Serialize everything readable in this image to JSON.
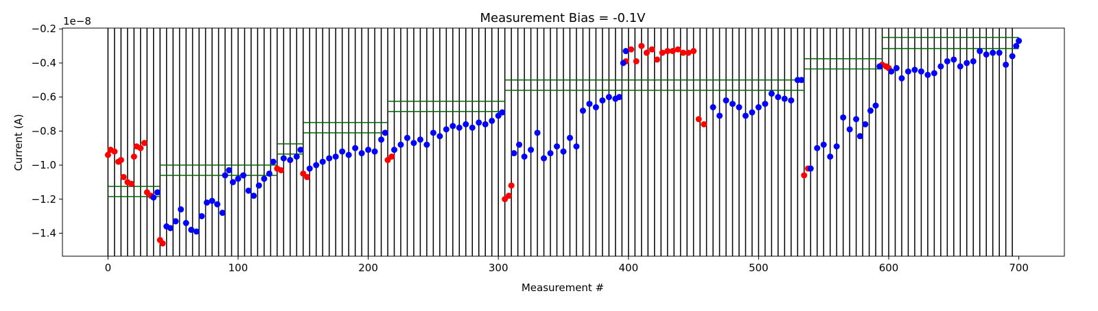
{
  "chart_data": {
    "type": "scatter",
    "title": "Measurement Bias = -0.1V",
    "xlabel": "Measurement #",
    "ylabel": "Current (A)",
    "y_offset_text": "1e−8",
    "xlim": [
      -35,
      735
    ],
    "ylim": [
      -15.35,
      -1.95
    ],
    "x_ticks": [
      0,
      100,
      200,
      300,
      400,
      500,
      600,
      700
    ],
    "x_tick_labels": [
      "0",
      "100",
      "200",
      "300",
      "400",
      "500",
      "600",
      "700"
    ],
    "y_ticks": [
      -14,
      -12,
      -10,
      -8,
      -6,
      -4,
      -2
    ],
    "y_tick_labels": [
      "−1.4",
      "−1.2",
      "−1.0",
      "−0.8",
      "−0.6",
      "−0.4",
      "−0.2"
    ],
    "grid": false,
    "colors": {
      "normal": "#0000ff",
      "flagged": "#ff0000",
      "vertical_lines": "#000000",
      "thresholds": "#006400"
    },
    "vertical_lines_x": [
      0,
      5,
      10,
      15,
      20,
      25,
      30,
      35,
      40,
      45,
      50,
      55,
      60,
      65,
      70,
      75,
      80,
      85,
      90,
      95,
      100,
      105,
      110,
      115,
      120,
      125,
      130,
      135,
      140,
      145,
      150,
      155,
      160,
      165,
      170,
      175,
      180,
      185,
      190,
      195,
      200,
      205,
      210,
      215,
      220,
      225,
      230,
      235,
      240,
      245,
      250,
      255,
      260,
      265,
      270,
      275,
      280,
      285,
      290,
      295,
      300,
      305,
      310,
      315,
      320,
      325,
      330,
      335,
      340,
      345,
      350,
      355,
      360,
      365,
      370,
      375,
      380,
      385,
      390,
      395,
      400,
      405,
      410,
      415,
      420,
      425,
      430,
      435,
      440,
      445,
      450,
      455,
      460,
      465,
      470,
      475,
      480,
      485,
      490,
      495,
      500,
      505,
      510,
      515,
      520,
      525,
      530,
      535,
      540,
      545,
      550,
      555,
      560,
      565,
      570,
      575,
      580,
      585,
      590,
      595,
      600,
      605,
      610,
      615,
      620,
      625,
      630,
      635,
      640,
      645,
      650,
      655,
      660,
      665,
      670,
      675,
      680,
      685,
      690,
      695
    ],
    "threshold_segments": [
      {
        "x": [
          0,
          40
        ],
        "y_upper": -11.25,
        "y_lower": -11.85
      },
      {
        "x": [
          40,
          130
        ],
        "y_upper": -10.0,
        "y_lower": -10.6
      },
      {
        "x": [
          130,
          150
        ],
        "y_upper": -8.75,
        "y_lower": -9.35
      },
      {
        "x": [
          150,
          215
        ],
        "y_upper": -7.5,
        "y_lower": -8.1
      },
      {
        "x": [
          215,
          305
        ],
        "y_upper": -6.25,
        "y_lower": -6.85
      },
      {
        "x": [
          305,
          535
        ],
        "y_upper": -5.0,
        "y_lower": -5.6
      },
      {
        "x": [
          535,
          595
        ],
        "y_upper": -3.75,
        "y_lower": -4.35
      },
      {
        "x": [
          595,
          700
        ],
        "y_upper": -2.5,
        "y_lower": -3.15
      }
    ],
    "series": [
      {
        "color": "red",
        "points": [
          [
            0,
            -9.4
          ],
          [
            2,
            -9.1
          ],
          [
            5,
            -9.2
          ],
          [
            8,
            -9.8
          ],
          [
            10,
            -9.7
          ],
          [
            12,
            -10.7
          ],
          [
            15,
            -11.0
          ],
          [
            18,
            -11.1
          ],
          [
            20,
            -9.5
          ],
          [
            22,
            -8.9
          ],
          [
            25,
            -9.0
          ],
          [
            28,
            -8.7
          ],
          [
            30,
            -11.6
          ],
          [
            33,
            -11.8
          ],
          [
            40,
            -14.4
          ],
          [
            42,
            -14.6
          ],
          [
            130,
            -10.2
          ],
          [
            133,
            -10.3
          ],
          [
            150,
            -10.5
          ],
          [
            153,
            -10.7
          ],
          [
            215,
            -9.7
          ],
          [
            218,
            -9.5
          ],
          [
            305,
            -12.0
          ],
          [
            308,
            -11.8
          ],
          [
            310,
            -11.2
          ],
          [
            398,
            -3.9
          ],
          [
            402,
            -3.2
          ],
          [
            406,
            -3.9
          ],
          [
            410,
            -3.0
          ],
          [
            414,
            -3.4
          ],
          [
            418,
            -3.2
          ],
          [
            422,
            -3.8
          ],
          [
            426,
            -3.4
          ],
          [
            430,
            -3.3
          ],
          [
            434,
            -3.3
          ],
          [
            438,
            -3.2
          ],
          [
            442,
            -3.4
          ],
          [
            446,
            -3.4
          ],
          [
            450,
            -3.3
          ],
          [
            454,
            -7.3
          ],
          [
            458,
            -7.6
          ],
          [
            535,
            -10.6
          ],
          [
            538,
            -10.2
          ],
          [
            595,
            -4.1
          ],
          [
            598,
            -4.2
          ],
          [
            600,
            -4.3
          ]
        ]
      },
      {
        "color": "blue",
        "points": [
          [
            35,
            -11.9
          ],
          [
            38,
            -11.6
          ],
          [
            45,
            -13.6
          ],
          [
            48,
            -13.7
          ],
          [
            52,
            -13.3
          ],
          [
            56,
            -12.6
          ],
          [
            60,
            -13.4
          ],
          [
            64,
            -13.8
          ],
          [
            68,
            -13.9
          ],
          [
            72,
            -13.0
          ],
          [
            76,
            -12.2
          ],
          [
            80,
            -12.1
          ],
          [
            84,
            -12.3
          ],
          [
            88,
            -12.8
          ],
          [
            90,
            -10.6
          ],
          [
            93,
            -10.3
          ],
          [
            96,
            -11.0
          ],
          [
            100,
            -10.8
          ],
          [
            104,
            -10.6
          ],
          [
            108,
            -11.5
          ],
          [
            112,
            -11.8
          ],
          [
            116,
            -11.2
          ],
          [
            120,
            -10.8
          ],
          [
            124,
            -10.5
          ],
          [
            127,
            -9.8
          ],
          [
            135,
            -9.6
          ],
          [
            140,
            -9.7
          ],
          [
            145,
            -9.5
          ],
          [
            148,
            -9.1
          ],
          [
            155,
            -10.2
          ],
          [
            160,
            -10.0
          ],
          [
            165,
            -9.8
          ],
          [
            170,
            -9.6
          ],
          [
            175,
            -9.5
          ],
          [
            180,
            -9.2
          ],
          [
            185,
            -9.4
          ],
          [
            190,
            -9.0
          ],
          [
            195,
            -9.3
          ],
          [
            200,
            -9.1
          ],
          [
            205,
            -9.2
          ],
          [
            210,
            -8.5
          ],
          [
            213,
            -8.1
          ],
          [
            220,
            -9.1
          ],
          [
            225,
            -8.8
          ],
          [
            230,
            -8.4
          ],
          [
            235,
            -8.7
          ],
          [
            240,
            -8.5
          ],
          [
            245,
            -8.8
          ],
          [
            250,
            -8.1
          ],
          [
            255,
            -8.3
          ],
          [
            260,
            -7.9
          ],
          [
            265,
            -7.7
          ],
          [
            270,
            -7.8
          ],
          [
            275,
            -7.6
          ],
          [
            280,
            -7.8
          ],
          [
            285,
            -7.5
          ],
          [
            290,
            -7.6
          ],
          [
            295,
            -7.4
          ],
          [
            300,
            -7.1
          ],
          [
            303,
            -6.9
          ],
          [
            312,
            -9.3
          ],
          [
            316,
            -8.8
          ],
          [
            320,
            -9.5
          ],
          [
            325,
            -9.1
          ],
          [
            330,
            -8.1
          ],
          [
            335,
            -9.6
          ],
          [
            340,
            -9.3
          ],
          [
            345,
            -8.9
          ],
          [
            350,
            -9.2
          ],
          [
            355,
            -8.4
          ],
          [
            360,
            -8.9
          ],
          [
            365,
            -6.8
          ],
          [
            370,
            -6.4
          ],
          [
            375,
            -6.6
          ],
          [
            380,
            -6.2
          ],
          [
            385,
            -6.0
          ],
          [
            390,
            -6.1
          ],
          [
            393,
            -6.0
          ],
          [
            396,
            -4.0
          ],
          [
            398,
            -3.3
          ],
          [
            465,
            -6.6
          ],
          [
            470,
            -7.1
          ],
          [
            475,
            -6.2
          ],
          [
            480,
            -6.4
          ],
          [
            485,
            -6.6
          ],
          [
            490,
            -7.1
          ],
          [
            495,
            -6.9
          ],
          [
            500,
            -6.6
          ],
          [
            505,
            -6.4
          ],
          [
            510,
            -5.8
          ],
          [
            515,
            -6.0
          ],
          [
            520,
            -6.1
          ],
          [
            525,
            -6.2
          ],
          [
            530,
            -5.0
          ],
          [
            533,
            -5.0
          ],
          [
            540,
            -10.2
          ],
          [
            545,
            -9.0
          ],
          [
            550,
            -8.8
          ],
          [
            555,
            -9.5
          ],
          [
            560,
            -8.9
          ],
          [
            565,
            -7.2
          ],
          [
            570,
            -7.9
          ],
          [
            575,
            -7.3
          ],
          [
            578,
            -8.3
          ],
          [
            582,
            -7.6
          ],
          [
            586,
            -6.8
          ],
          [
            590,
            -6.5
          ],
          [
            593,
            -4.2
          ],
          [
            602,
            -4.5
          ],
          [
            606,
            -4.3
          ],
          [
            610,
            -4.9
          ],
          [
            615,
            -4.5
          ],
          [
            620,
            -4.4
          ],
          [
            625,
            -4.5
          ],
          [
            630,
            -4.7
          ],
          [
            635,
            -4.6
          ],
          [
            640,
            -4.2
          ],
          [
            645,
            -3.9
          ],
          [
            650,
            -3.8
          ],
          [
            655,
            -4.2
          ],
          [
            660,
            -4.0
          ],
          [
            665,
            -3.9
          ],
          [
            670,
            -3.3
          ],
          [
            675,
            -3.5
          ],
          [
            680,
            -3.4
          ],
          [
            685,
            -3.4
          ],
          [
            690,
            -4.1
          ],
          [
            695,
            -3.6
          ],
          [
            698,
            -3.0
          ],
          [
            700,
            -2.7
          ]
        ]
      }
    ]
  }
}
